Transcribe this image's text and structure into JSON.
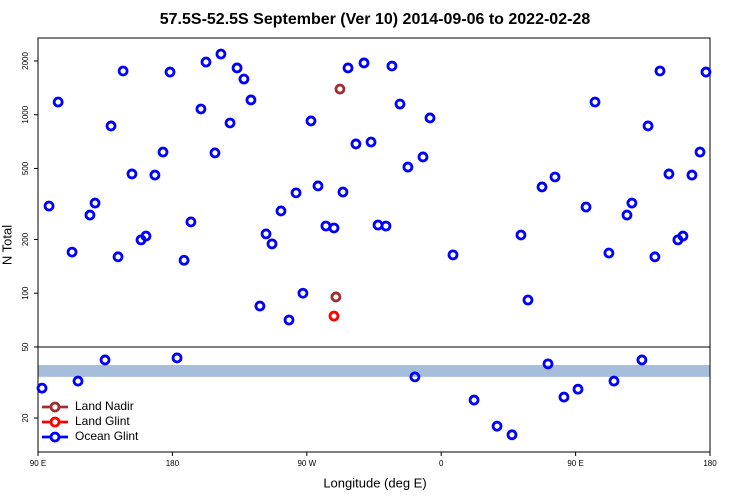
{
  "chart_data": {
    "type": "scatter",
    "title": "57.5S-52.5S September (Ver 10)   2014-09-06 to 2022-02-28",
    "x_label": "Longitude (deg E)",
    "y_label": "N Total",
    "xlim": [
      90,
      540
    ],
    "xticks": [
      {
        "value": 90,
        "label": "90 E"
      },
      180,
      {
        "value": 270,
        "label": "90 W"
      },
      {
        "value": 360,
        "label": "0"
      },
      {
        "value": 450,
        "label": "90 E"
      },
      {
        "value": 540,
        "label": "180"
      }
    ],
    "ylim": [
      12.9,
      2690
    ],
    "log_y": true,
    "yticks": [
      20,
      50,
      100,
      200,
      500,
      1000,
      2000
    ],
    "hline": 50,
    "band": [
      34,
      39.6
    ],
    "band_color": "#a7bddc",
    "legend": "lower left",
    "series": [
      {
        "name": "Land Nadir",
        "color": "#a03030",
        "x": [
          292.2,
          289.5
        ],
        "values": [
          1393,
          95.3
        ]
      },
      {
        "name": "Land Glint",
        "color": "#ff0000",
        "x": [
          288.2
        ],
        "values": [
          74.5
        ]
      },
      {
        "name": "Ocean Glint",
        "color": "#0000ff",
        "x": [
          97.4,
          103.5,
          112.8,
          92.7,
          116.8,
          124.8,
          128.2,
          134.9,
          138.9,
          143.6,
          147,
          152.9,
          159,
          162.3,
          168.3,
          173.7,
          178.4,
          183.1,
          187.8,
          192.4,
          199.1,
          202.5,
          208.5,
          212.5,
          218.6,
          223.3,
          227.9,
          232.6,
          238.6,
          242.7,
          246.7,
          252.7,
          258.1,
          262.8,
          267.4,
          272.8,
          277.5,
          282.8,
          288.2,
          294.2,
          297.6,
          302.9,
          308.3,
          313,
          317.7,
          323,
          327,
          332.4,
          337.7,
          342.4,
          347.8,
          352.5,
          367.9,
          382,
          397.4,
          407.4,
          413.4,
          418.1,
          427.5,
          431.5,
          436.2,
          442.2,
          451.6,
          457,
          463,
          472.3,
          475.7,
          484.4,
          487.7,
          494.4,
          498.5,
          503.1,
          506.5,
          512.5,
          518.5,
          521.9,
          527.9,
          533.3,
          537.3
        ],
        "values": [
          308,
          1178,
          170,
          29.4,
          32.2,
          274,
          320,
          42.3,
          865,
          160,
          1758,
          466,
          199,
          209,
          459,
          618,
          1734,
          43.4,
          153,
          251,
          1077,
          1973,
          611,
          2188,
          899,
          1828,
          1585,
          1210,
          84.8,
          215,
          189,
          289,
          70.8,
          365,
          100,
          923,
          399,
          238,
          232,
          369,
          1828,
          686,
          1950,
          703,
          241,
          238,
          1875,
          1148,
          509,
          34,
          580,
          959,
          164,
          25.2,
          18,
          16.1,
          212,
          91.6,
          394,
          40.2,
          448,
          26.2,
          29,
          304,
          1178,
          168,
          32.2,
          274,
          320,
          42.3,
          865,
          160,
          1758,
          466,
          199,
          209,
          459,
          618,
          1734
        ]
      }
    ]
  }
}
